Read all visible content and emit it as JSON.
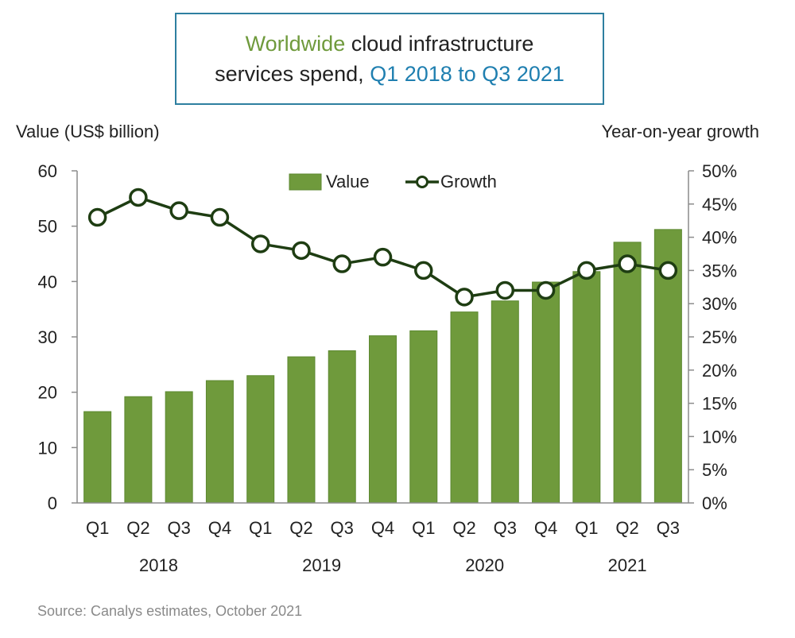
{
  "title": {
    "line1_part1": "Worldwide",
    "line1_part2": "cloud infrastructure",
    "line2_part1": "services  spend,",
    "line2_part2": "Q1 2018 to Q3 2021"
  },
  "source": "Source:  Canalys estimates, October 2021",
  "colors": {
    "bar": "#6f9a3c",
    "bar_edge": "#5c8830",
    "line": "#1e3d12",
    "marker_fill": "#ffffff",
    "title_green": "#6f9a3c",
    "title_blue": "#1f7fb0",
    "title_border": "#2e7fa0"
  },
  "chart_data": {
    "type": "bar",
    "categories": [
      "Q1",
      "Q2",
      "Q3",
      "Q4",
      "Q1",
      "Q2",
      "Q3",
      "Q4",
      "Q1",
      "Q2",
      "Q3",
      "Q4",
      "Q1",
      "Q2",
      "Q3"
    ],
    "years": [
      {
        "label": "2018",
        "from": 0,
        "to": 3
      },
      {
        "label": "2019",
        "from": 4,
        "to": 7
      },
      {
        "label": "2020",
        "from": 8,
        "to": 11
      },
      {
        "label": "2021",
        "from": 12,
        "to": 14
      }
    ],
    "series": [
      {
        "name": "Value",
        "type": "bar",
        "axis": "left",
        "values": [
          16.5,
          19.2,
          20.1,
          22.1,
          23.0,
          26.4,
          27.5,
          30.2,
          31.1,
          34.5,
          36.5,
          39.9,
          41.8,
          47.1,
          49.4
        ]
      },
      {
        "name": "Growth",
        "type": "line",
        "axis": "right",
        "values": [
          0.43,
          0.46,
          0.44,
          0.43,
          0.39,
          0.38,
          0.36,
          0.37,
          0.35,
          0.31,
          0.32,
          0.32,
          0.35,
          0.36,
          0.35
        ]
      }
    ],
    "ylabel": "Value (US$ billion)",
    "y2label": "Year-on-year growth",
    "ylim": [
      0,
      60
    ],
    "yticks": [
      "0",
      "10",
      "20",
      "30",
      "40",
      "50",
      "60"
    ],
    "y2lim": [
      0,
      0.5
    ],
    "y2ticks": [
      "0%",
      "5%",
      "10%",
      "15%",
      "20%",
      "25%",
      "30%",
      "35%",
      "40%",
      "45%",
      "50%"
    ],
    "legend": [
      "Value",
      "Growth"
    ],
    "legend_position": "top-center",
    "grid": false
  }
}
